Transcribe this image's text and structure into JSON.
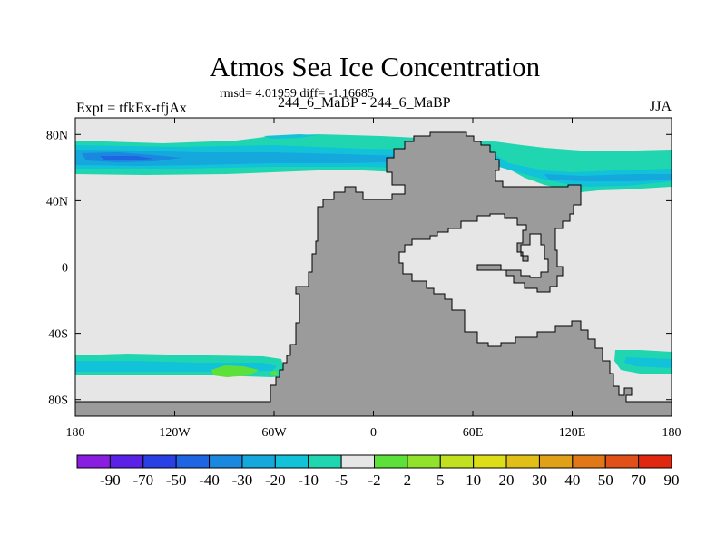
{
  "chart_data": {
    "type": "heatmap",
    "title": "Atmos Sea Ice Concentration",
    "stats_text": "rmsd= 4.01959 diff= -1.16685",
    "left_label": "Expt = tfkEx-tfjAx",
    "center_label": "244_6_MaBP - 244_6_MaBP",
    "right_label": "JJA",
    "x_ticks": [
      "180",
      "120W",
      "60W",
      "0",
      "60E",
      "120E",
      "180"
    ],
    "y_ticks": [
      "80N",
      "40N",
      "0",
      "40S",
      "80S"
    ],
    "xlim": [
      -180,
      180
    ],
    "ylim": [
      -90,
      90
    ],
    "colorbar": {
      "labels": [
        "-90",
        "-70",
        "-50",
        "-40",
        "-30",
        "-20",
        "-10",
        "-5",
        "-2",
        "2",
        "5",
        "10",
        "20",
        "30",
        "40",
        "50",
        "70",
        "90"
      ],
      "colors": [
        "#8a1ee0",
        "#5a22e6",
        "#2840e4",
        "#1f64e2",
        "#1a88df",
        "#15a8dd",
        "#12c2d9",
        "#1fd6b0",
        "#e6e6e6",
        "#5ee03a",
        "#90e22c",
        "#c0e020",
        "#dede18",
        "#e0c018",
        "#e0a018",
        "#e07818",
        "#e05018",
        "#e02810"
      ]
    },
    "colors": {
      "ocean_neutral": "#e6e6e6",
      "land": "#9b9b9b",
      "frame": "#000000"
    }
  }
}
